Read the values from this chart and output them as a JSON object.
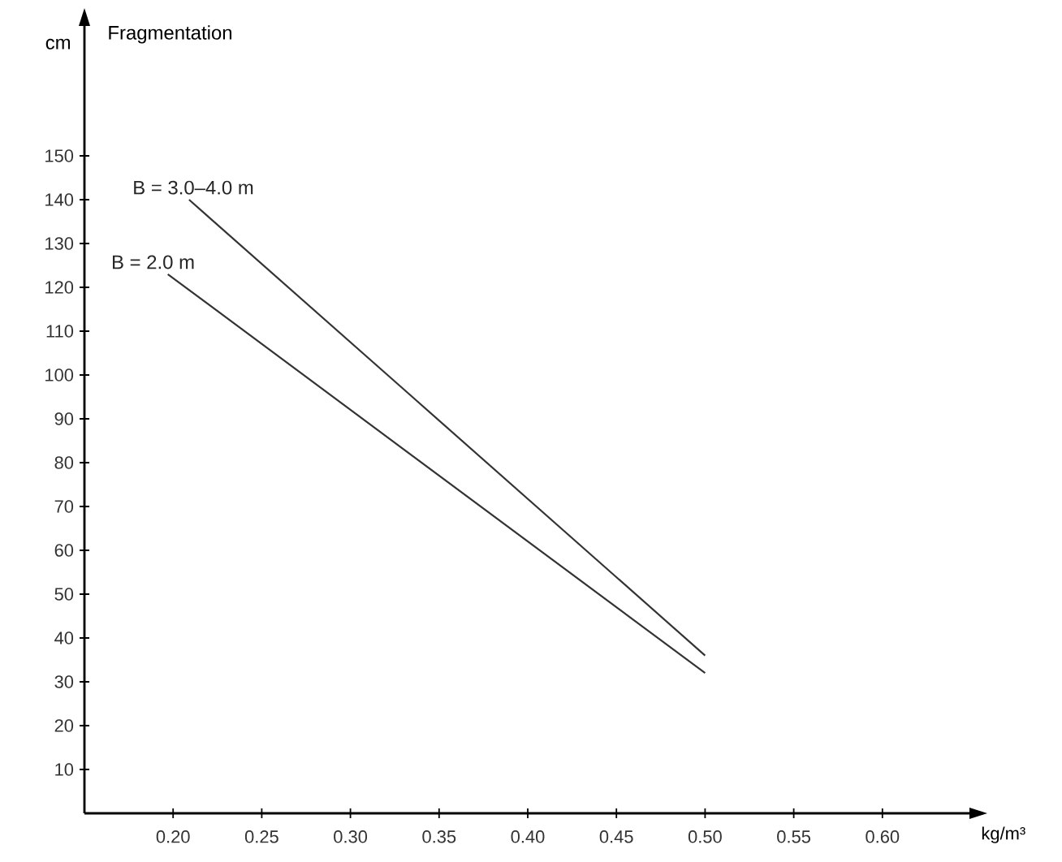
{
  "chart_data": {
    "type": "line",
    "title": "Fragmentation",
    "xlabel": "kg/m³",
    "ylabel": "cm",
    "xlim": [
      0.15,
      0.65
    ],
    "ylim": [
      0,
      180
    ],
    "xticks": [
      {
        "value": 0.2,
        "label": "0.20"
      },
      0.25,
      {
        "value": 0.3,
        "label": "0.30"
      },
      0.35,
      {
        "value": 0.4,
        "label": "0.40"
      },
      0.45,
      {
        "value": 0.5,
        "label": "0.50"
      },
      0.55,
      {
        "value": 0.6,
        "label": "0.60"
      }
    ],
    "yticks": [
      10,
      20,
      30,
      40,
      50,
      60,
      70,
      80,
      90,
      100,
      110,
      120,
      130,
      140,
      150
    ],
    "series": [
      {
        "name": "B = 3.0–4.0 m",
        "color": "#333333",
        "x": [
          0.209,
          0.5
        ],
        "values": [
          140,
          36
        ]
      },
      {
        "name": "B = 2.0 m",
        "color": "#333333",
        "x": [
          0.197,
          0.5
        ],
        "values": [
          123,
          32
        ]
      }
    ]
  }
}
